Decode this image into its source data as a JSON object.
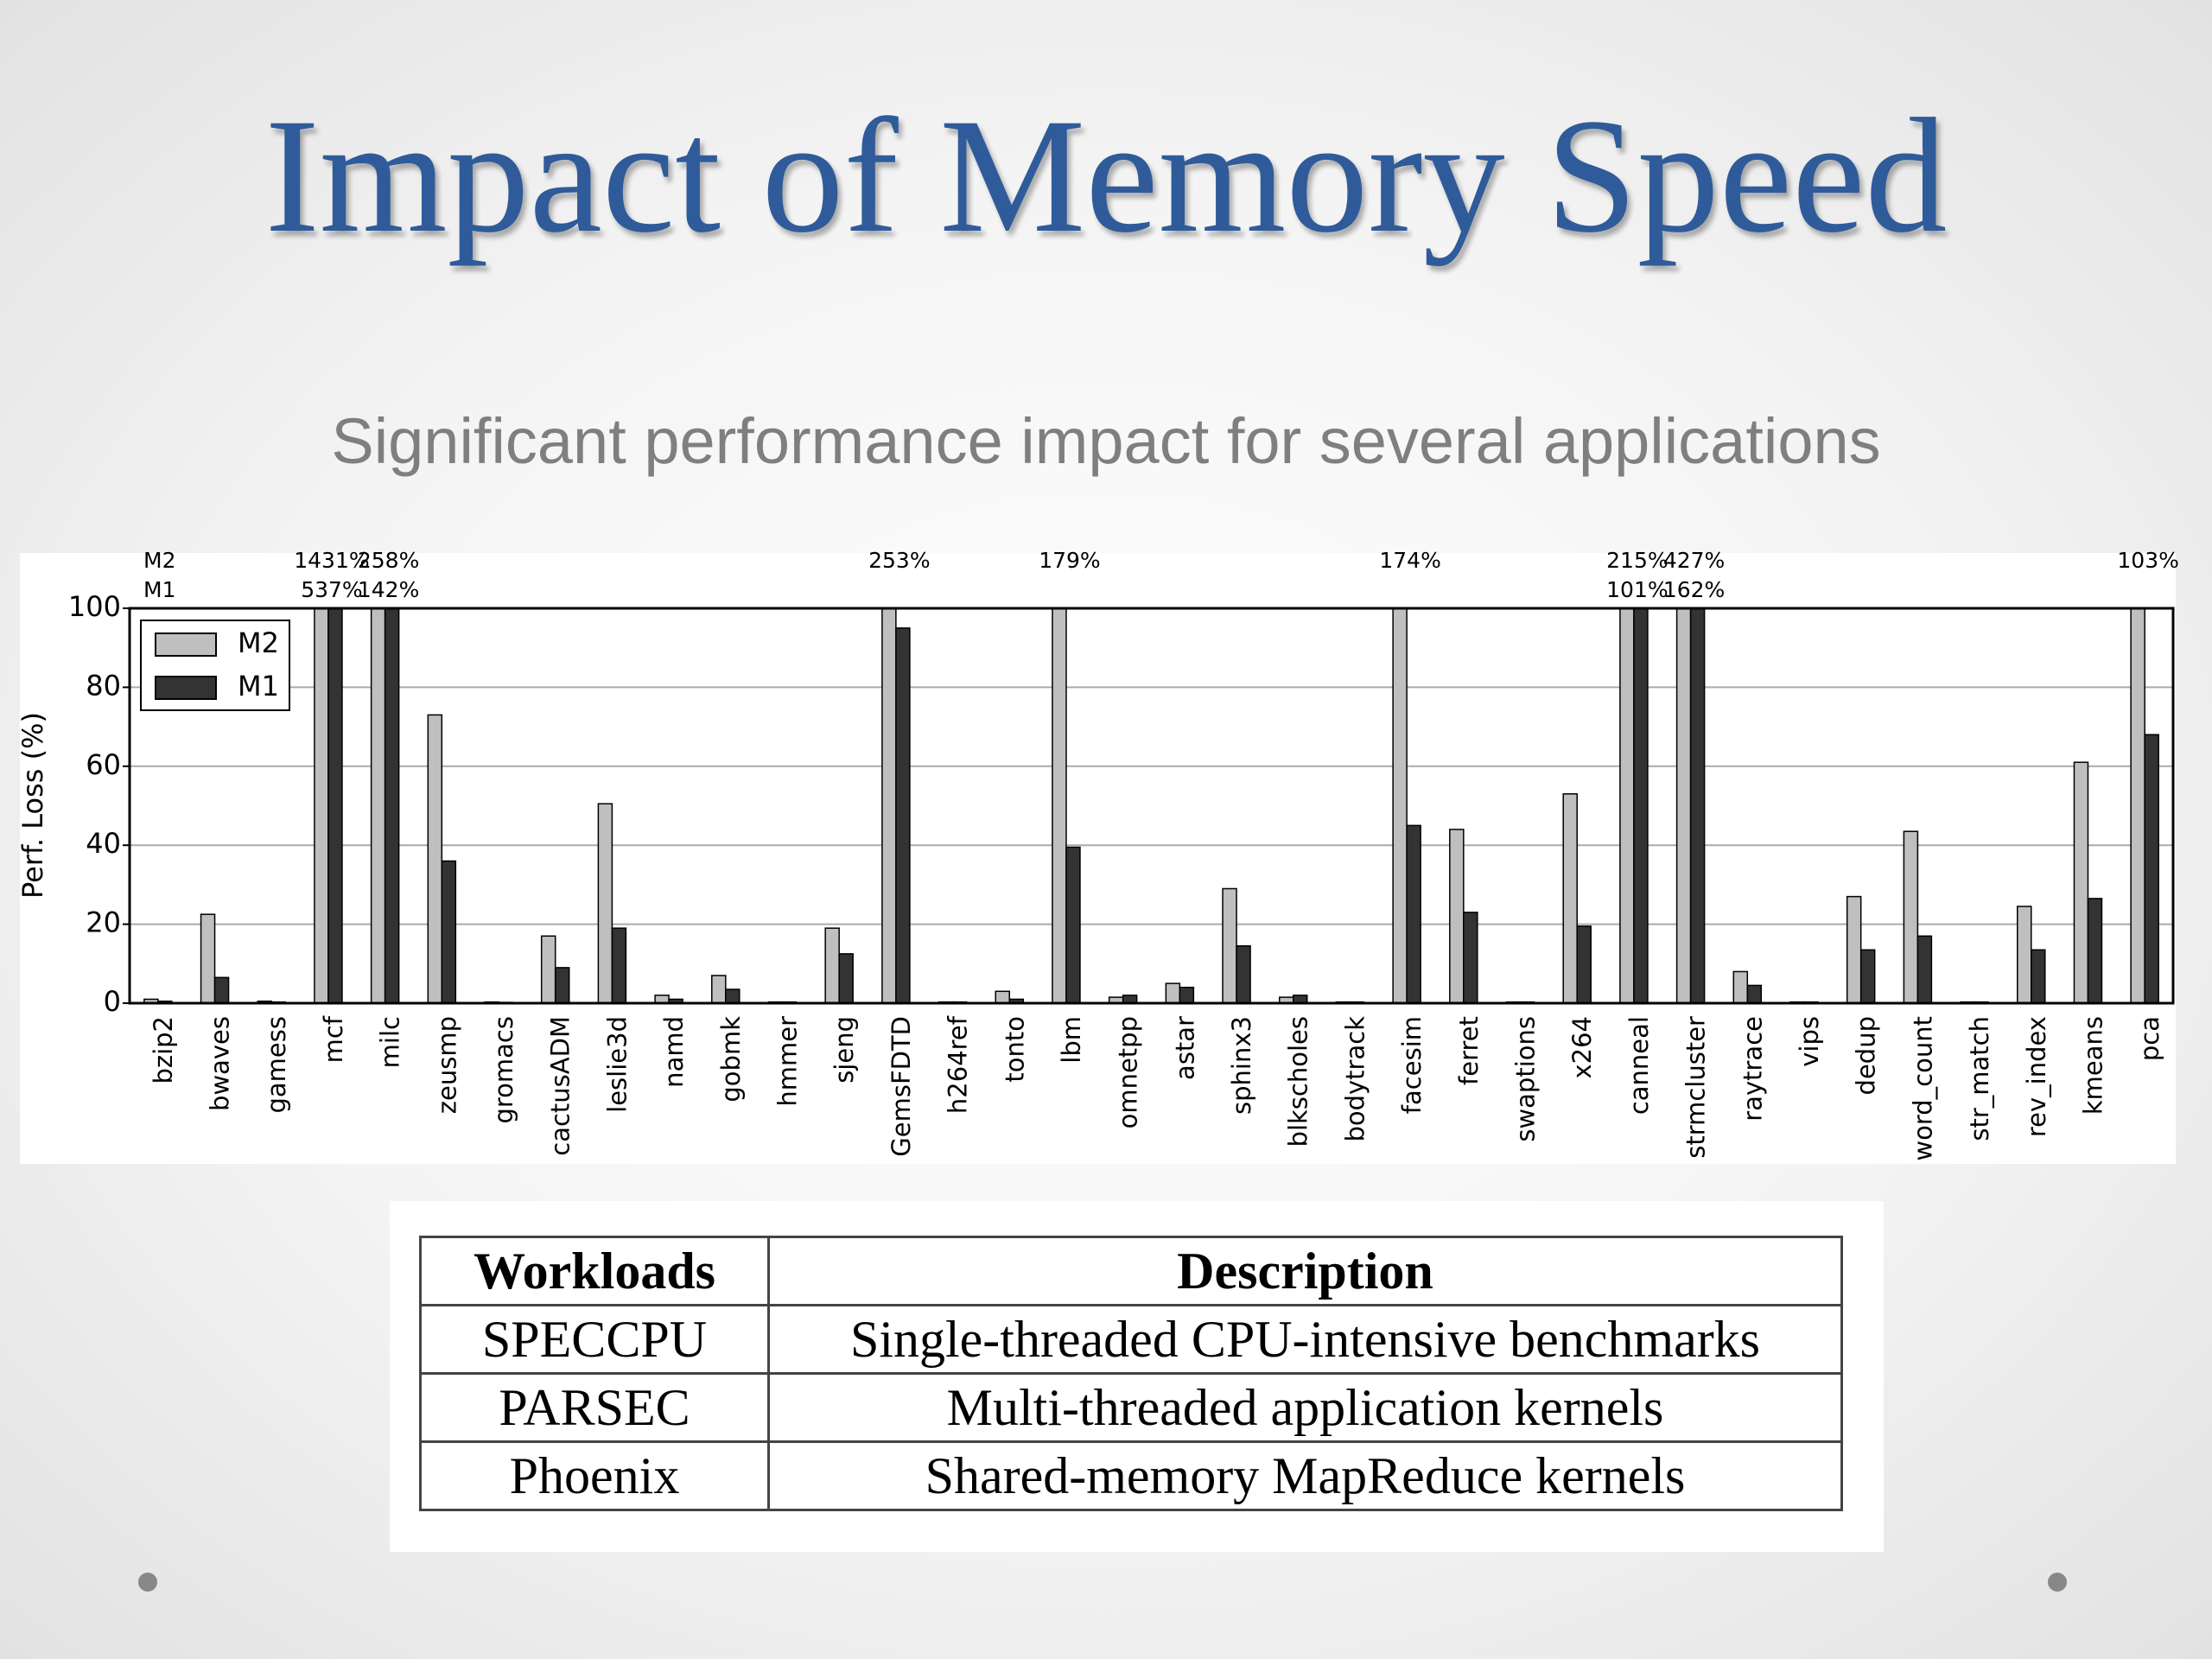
{
  "title": "Impact of Memory Speed",
  "subtitle": "Significant performance impact for several applications",
  "chart_data": {
    "type": "bar",
    "ylabel": "Perf. Loss (%)",
    "categories": [
      "bzip2",
      "bwaves",
      "gamess",
      "mcf",
      "milc",
      "zeusmp",
      "gromacs",
      "cactusADM",
      "leslie3d",
      "namd",
      "gobmk",
      "hmmer",
      "sjeng",
      "GemsFDTD",
      "h264ref",
      "tonto",
      "lbm",
      "omnetpp",
      "astar",
      "sphinx3",
      "blkscholes",
      "bodytrack",
      "facesim",
      "ferret",
      "swaptions",
      "x264",
      "canneal",
      "strmcluster",
      "raytrace",
      "vips",
      "dedup",
      "word_count",
      "str_match",
      "rev_index",
      "kmeans",
      "pca"
    ],
    "series": [
      {
        "name": "M2",
        "color": "#bfbfbf",
        "values": [
          1,
          22.5,
          0.5,
          1431,
          258,
          73,
          0.3,
          17,
          50.5,
          2,
          7,
          0.3,
          19,
          253,
          0.3,
          3,
          179,
          1.5,
          5,
          29,
          1.5,
          0.3,
          174,
          44,
          0.3,
          53,
          215,
          427,
          8,
          0.3,
          27,
          43.5,
          0.3,
          24.5,
          61,
          103
        ],
        "value_labels": [
          null,
          null,
          null,
          "1431%",
          "258%",
          null,
          null,
          null,
          null,
          null,
          null,
          null,
          null,
          "253%",
          null,
          null,
          "179%",
          null,
          null,
          null,
          null,
          null,
          "174%",
          null,
          null,
          null,
          "215%",
          "427%",
          null,
          null,
          null,
          null,
          null,
          null,
          null,
          "103%"
        ]
      },
      {
        "name": "M1",
        "color": "#333333",
        "values": [
          0.5,
          6.5,
          0.3,
          537,
          142,
          36,
          0.2,
          9,
          19,
          1,
          3.5,
          0.3,
          12.5,
          95,
          0.3,
          1,
          39.5,
          2,
          4,
          14.5,
          2,
          0.3,
          45,
          23,
          0.3,
          19.5,
          101,
          162,
          4.5,
          0.3,
          13.5,
          17,
          0.3,
          13.5,
          26.5,
          68
        ],
        "value_labels": [
          null,
          null,
          null,
          "537%",
          "142%",
          null,
          null,
          null,
          null,
          null,
          null,
          null,
          null,
          null,
          null,
          null,
          null,
          null,
          null,
          null,
          null,
          null,
          null,
          null,
          null,
          null,
          "101%",
          "162%",
          null,
          null,
          null,
          null,
          null,
          null,
          null,
          null
        ]
      }
    ],
    "ylim": [
      0,
      100
    ],
    "yticks": [
      0,
      20,
      40,
      60,
      80,
      100
    ],
    "grid": true,
    "legend": "upper left"
  },
  "table": {
    "header": [
      "Workloads",
      "Description"
    ],
    "rows": [
      [
        "SPECCPU",
        "Single-threaded CPU-intensive benchmarks"
      ],
      [
        "PARSEC",
        "Multi-threaded application kernels"
      ],
      [
        "Phoenix",
        "Shared-memory MapReduce kernels"
      ]
    ]
  }
}
